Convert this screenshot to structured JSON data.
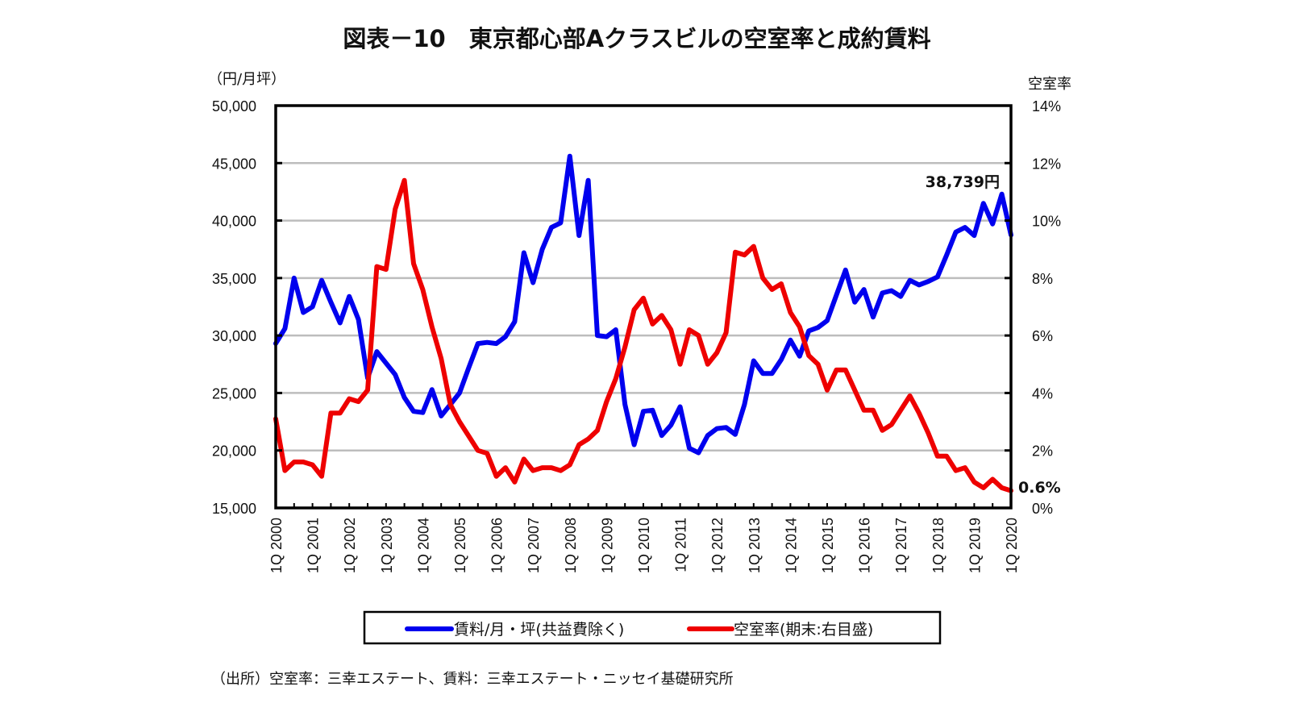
{
  "chart_data": {
    "type": "line",
    "title": "図表－10　東京都心部Aクラスビルの空室率と成約賃料",
    "left_axis_unit": "（円/月坪）",
    "right_axis_unit": "空室率",
    "left_ylim": [
      15000,
      50000
    ],
    "right_ylim": [
      0,
      14
    ],
    "left_ticks": [
      "15,000",
      "20,000",
      "25,000",
      "30,000",
      "35,000",
      "40,000",
      "45,000",
      "50,000"
    ],
    "left_tick_values": [
      15000,
      20000,
      25000,
      30000,
      35000,
      40000,
      45000,
      50000
    ],
    "right_ticks": [
      "0%",
      "2%",
      "4%",
      "6%",
      "8%",
      "10%",
      "12%",
      "14%"
    ],
    "right_tick_values": [
      0,
      2,
      4,
      6,
      8,
      10,
      12,
      14
    ],
    "x_start": "1Q 2000",
    "x_end": "1Q 2020",
    "x_tick_labels": [
      "1Q 2000",
      "1Q 2001",
      "1Q 2002",
      "1Q 2003",
      "1Q 2004",
      "1Q 2005",
      "1Q 2006",
      "1Q 2007",
      "1Q 2008",
      "1Q 2009",
      "1Q 2010",
      "1Q 2011",
      "1Q 2012",
      "1Q 2013",
      "1Q 2014",
      "1Q 2015",
      "1Q 2016",
      "1Q 2017",
      "1Q 2018",
      "1Q 2019",
      "1Q 2020"
    ],
    "grid": true,
    "series": [
      {
        "name": "賃料/月・坪(共益費除く)",
        "axis": "left",
        "color": "#0000ee",
        "values": [
          29300,
          30600,
          35000,
          32000,
          32500,
          34800,
          32900,
          31100,
          33400,
          31400,
          26300,
          28600,
          27600,
          26600,
          24600,
          23400,
          23300,
          25300,
          23000,
          24000,
          25000,
          27200,
          29300,
          29400,
          29300,
          29900,
          31200,
          37200,
          34600,
          37500,
          39400,
          39800,
          45600,
          38700,
          43500,
          30000,
          29900,
          30500,
          24000,
          20500,
          23400,
          23500,
          21300,
          22200,
          23800,
          20200,
          19800,
          21300,
          21900,
          22000,
          21400,
          24000,
          27800,
          26700,
          26700,
          27900,
          29600,
          28200,
          30400,
          30700,
          31300,
          33500,
          35700,
          32900,
          34000,
          31600,
          33700,
          33900,
          33400,
          34800,
          34400,
          34700,
          35100,
          37000,
          39000,
          39400,
          38700,
          41500,
          39700,
          42300,
          38739
        ]
      },
      {
        "name": "空室率(期末:右目盛)",
        "axis": "right",
        "color": "#ee0000",
        "values": [
          3.1,
          1.3,
          1.6,
          1.6,
          1.5,
          1.1,
          3.3,
          3.3,
          3.8,
          3.7,
          4.1,
          8.4,
          8.3,
          10.4,
          11.4,
          8.5,
          7.6,
          6.3,
          5.2,
          3.6,
          3.0,
          2.5,
          2.0,
          1.9,
          1.1,
          1.4,
          0.9,
          1.7,
          1.3,
          1.4,
          1.4,
          1.3,
          1.5,
          2.2,
          2.4,
          2.7,
          3.7,
          4.5,
          5.6,
          6.9,
          7.3,
          6.4,
          6.7,
          6.2,
          5.0,
          6.2,
          6.0,
          5.0,
          5.4,
          6.1,
          8.9,
          8.8,
          9.1,
          8.0,
          7.6,
          7.8,
          6.8,
          6.3,
          5.3,
          5.0,
          4.1,
          4.8,
          4.8,
          4.1,
          3.4,
          3.4,
          2.7,
          2.9,
          3.4,
          3.9,
          3.3,
          2.6,
          1.8,
          1.8,
          1.3,
          1.4,
          0.9,
          0.7,
          1.0,
          0.7,
          0.6
        ]
      }
    ],
    "annotations": [
      {
        "text": "38,739円",
        "series": 0,
        "index": 80
      },
      {
        "text": "0.6%",
        "series": 1,
        "index": 80
      }
    ],
    "legend": {
      "placement": "bottom",
      "items": [
        "賃料/月・坪(共益費除く)",
        "空室率(期末:右目盛)"
      ]
    },
    "source": "（出所）空室率：三幸エステート、賃料：三幸エステート・ニッセイ基礎研究所"
  }
}
